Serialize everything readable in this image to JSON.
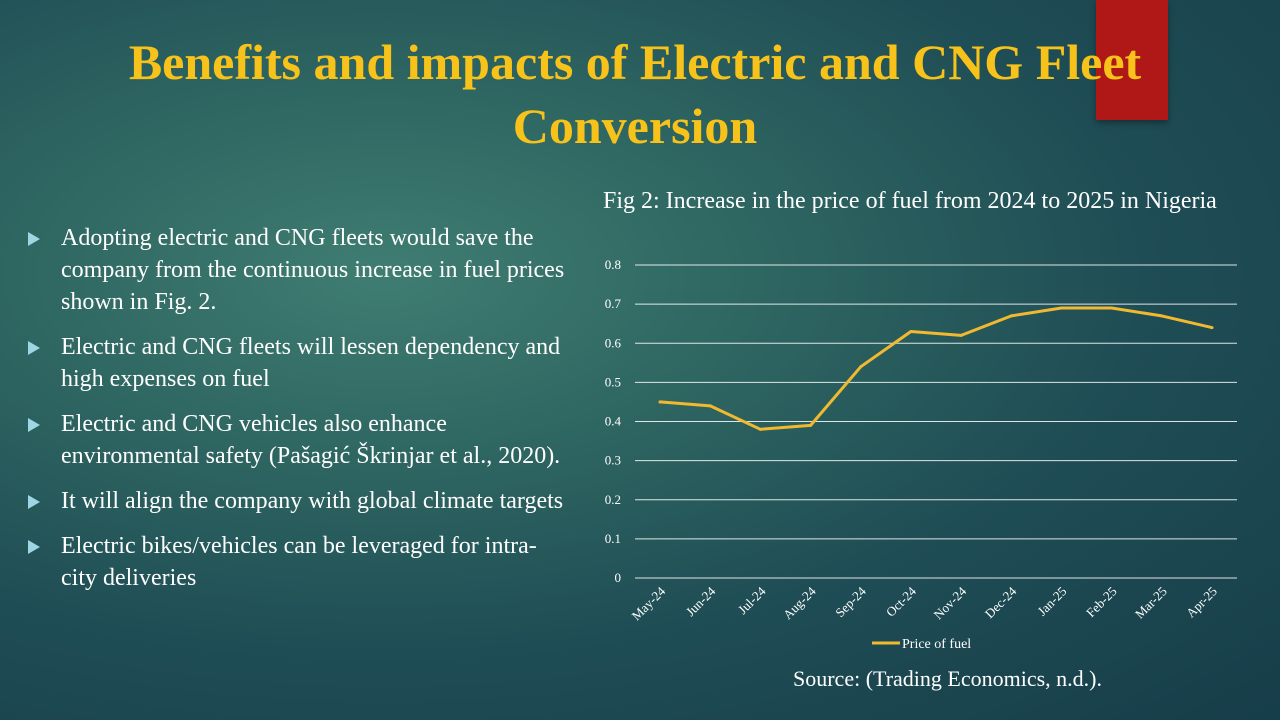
{
  "slide": {
    "title": "Benefits and impacts of Electric and CNG Fleet Conversion",
    "bullets": [
      "Adopting electric and CNG fleets would save the company from the continuous increase in fuel prices shown in Fig. 2.",
      "Electric and CNG fleets will lessen dependency and high expenses on fuel",
      "Electric and CNG vehicles also enhance environmental safety (Pašagić Škrinjar et al., 2020).",
      "It will align the company with global climate targets",
      "Electric bikes/vehicles can be leveraged for intra-city deliveries"
    ],
    "figure_title": "Fig 2: Increase in the price of fuel from 2024 to 2025 in Nigeria",
    "source": "Source: (Trading Economics, n.d.).",
    "colors": {
      "title": "#f7c21a",
      "accent_bar": "#b01818",
      "bullet_marker": "#9fd6e3",
      "text": "#ffffff",
      "background": "#2f6762"
    }
  },
  "chart_data": {
    "type": "line",
    "categories": [
      "May-24",
      "Jun-24",
      "Jul-24",
      "Aug-24",
      "Sep-24",
      "Oct-24",
      "Nov-24",
      "Dec-24",
      "Jan-25",
      "Feb-25",
      "Mar-25",
      "Apr-25"
    ],
    "series": [
      {
        "name": "Price of fuel",
        "color": "#f0b92f",
        "values": [
          0.45,
          0.44,
          0.38,
          0.39,
          0.54,
          0.63,
          0.62,
          0.67,
          0.69,
          0.69,
          0.67,
          0.64
        ]
      }
    ],
    "ylim": [
      0,
      0.8
    ],
    "yticks": [
      "0",
      "0.1",
      "0.2",
      "0.3",
      "0.4",
      "0.5",
      "0.6",
      "0.7",
      "0.8"
    ],
    "grid": true,
    "legend": "bottom"
  }
}
